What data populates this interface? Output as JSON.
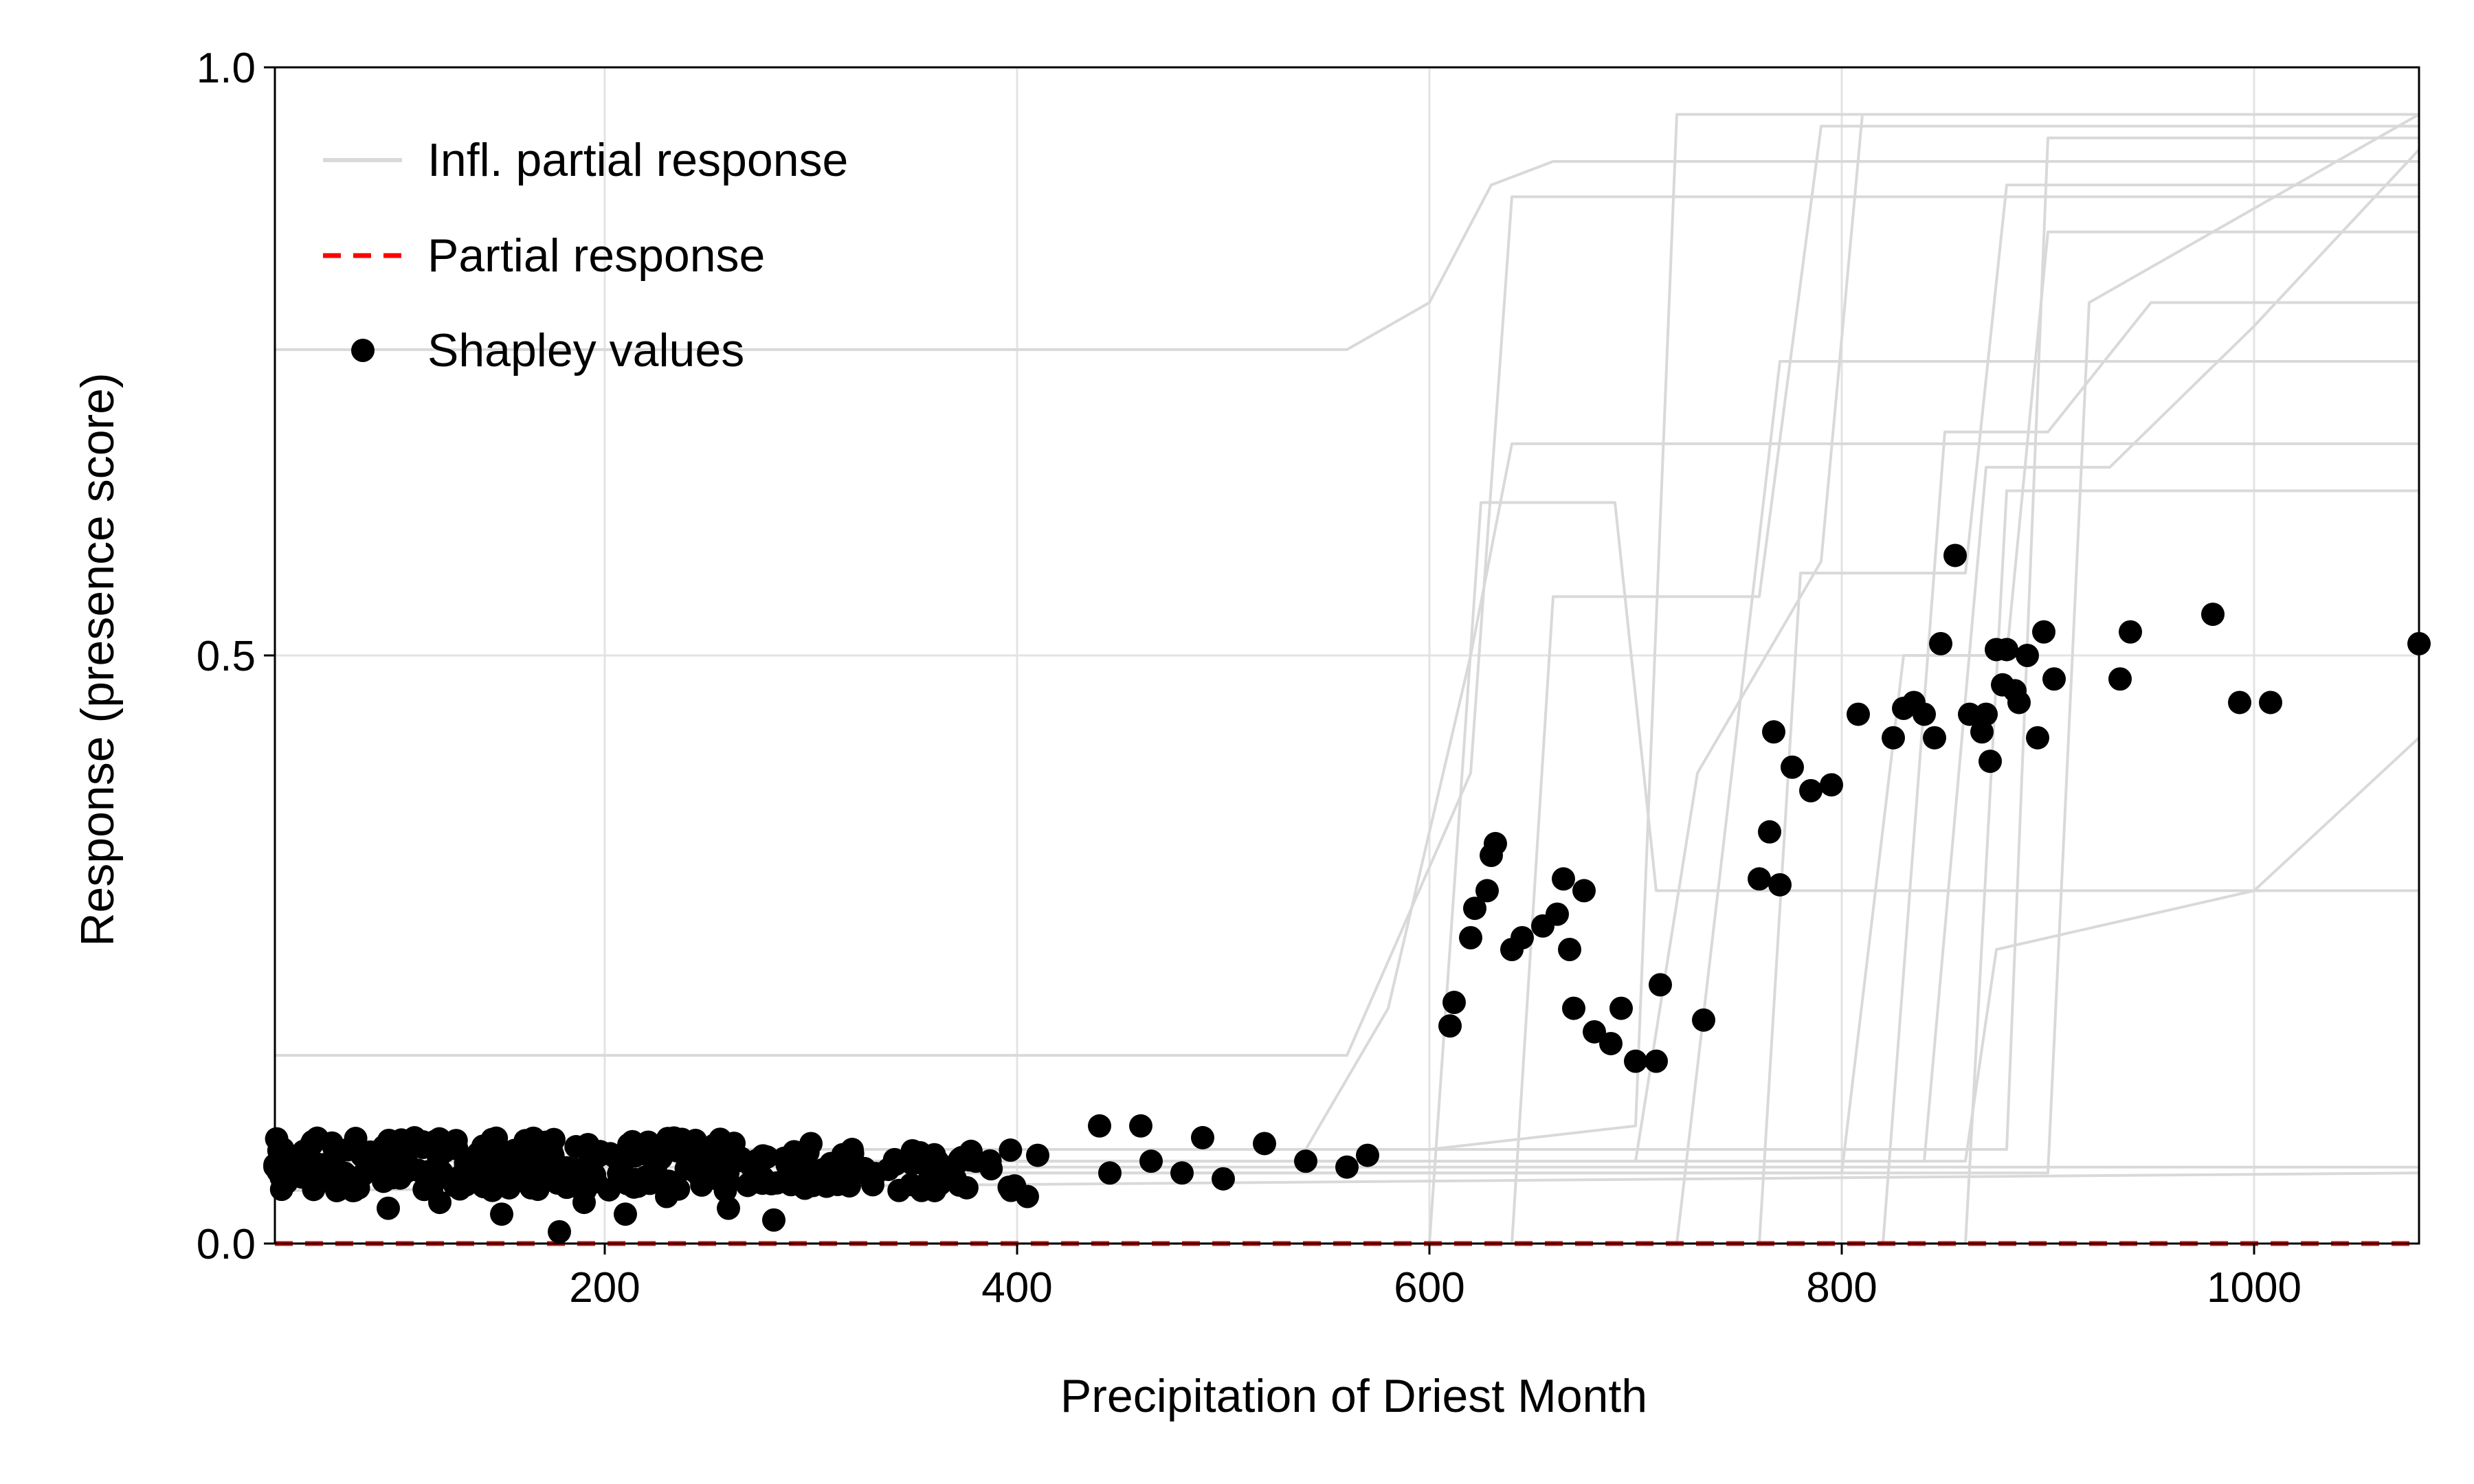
{
  "chart_data": {
    "type": "scatter",
    "title": "",
    "xlabel": "Precipitation of Driest Month",
    "ylabel": "Response (presence score)",
    "xlim": [
      40,
      1080
    ],
    "ylim": [
      0.0,
      1.0
    ],
    "xticks": [
      200,
      400,
      600,
      800,
      1000
    ],
    "yticks": [
      0.0,
      0.5,
      1.0
    ],
    "xtick_labels": [
      "200",
      "400",
      "600",
      "800",
      "1000"
    ],
    "ytick_labels": [
      "0.0",
      "0.5",
      "1.0"
    ],
    "grid": true,
    "legend_position": "top-left",
    "legend": [
      "Infl. partial response",
      "Partial response",
      "Shapley values"
    ],
    "colors": {
      "influence_lines": "#d9d9d9",
      "partial_response": "#ff0000",
      "shapley_points": "#000000"
    },
    "partial_response": {
      "name": "Partial response",
      "x": [
        40,
        1080
      ],
      "y": [
        0.0,
        0.0
      ]
    },
    "influence_lines": [
      {
        "x": [
          40,
          560,
          600,
          630,
          660,
          1080
        ],
        "y": [
          0.76,
          0.76,
          0.8,
          0.9,
          0.92,
          0.92
        ]
      },
      {
        "x": [
          40,
          560,
          620,
          640,
          655,
          1080
        ],
        "y": [
          0.16,
          0.16,
          0.4,
          0.89,
          0.89,
          0.89
        ]
      },
      {
        "x": [
          40,
          600,
          625,
          690,
          710,
          1080
        ],
        "y": [
          0.0,
          0.0,
          0.63,
          0.63,
          0.3,
          0.3
        ]
      },
      {
        "x": [
          40,
          560,
          600,
          700,
          720,
          760,
          1080
        ],
        "y": [
          0.08,
          0.08,
          0.08,
          0.1,
          0.96,
          0.96,
          0.96
        ]
      },
      {
        "x": [
          40,
          640,
          660,
          760,
          790,
          1080
        ],
        "y": [
          0.0,
          0.0,
          0.55,
          0.55,
          0.95,
          0.95
        ]
      },
      {
        "x": [
          40,
          700,
          730,
          790,
          810,
          1080
        ],
        "y": [
          0.07,
          0.07,
          0.4,
          0.58,
          0.96,
          0.96
        ]
      },
      {
        "x": [
          40,
          760,
          780,
          860,
          880,
          1080
        ],
        "y": [
          0.0,
          0.0,
          0.57,
          0.57,
          0.9,
          0.9
        ]
      },
      {
        "x": [
          40,
          800,
          830,
          880,
          900,
          1080
        ],
        "y": [
          0.06,
          0.06,
          0.5,
          0.5,
          0.86,
          0.86
        ]
      },
      {
        "x": [
          40,
          820,
          850,
          900,
          950,
          1080
        ],
        "y": [
          0.0,
          0.0,
          0.69,
          0.69,
          0.8,
          0.8
        ]
      },
      {
        "x": [
          40,
          840,
          870,
          930,
          1000,
          1080
        ],
        "y": [
          0.07,
          0.07,
          0.66,
          0.66,
          0.78,
          0.93
        ]
      },
      {
        "x": [
          40,
          860,
          880,
          940,
          1080
        ],
        "y": [
          0.0,
          0.0,
          0.64,
          0.64,
          0.64
        ]
      },
      {
        "x": [
          40,
          880,
          900,
          980,
          1080
        ],
        "y": [
          0.08,
          0.08,
          0.94,
          0.94,
          0.94
        ]
      },
      {
        "x": [
          40,
          540,
          580,
          620,
          640,
          1080
        ],
        "y": [
          0.08,
          0.08,
          0.2,
          0.5,
          0.68,
          0.68
        ]
      },
      {
        "x": [
          40,
          720,
          740,
          770,
          800,
          1080
        ],
        "y": [
          0.0,
          0.0,
          0.3,
          0.75,
          0.75,
          0.75
        ]
      },
      {
        "x": [
          40,
          860,
          875,
          1000,
          1080
        ],
        "y": [
          0.07,
          0.07,
          0.25,
          0.3,
          0.43
        ]
      },
      {
        "x": [
          40,
          900,
          920,
          1080
        ],
        "y": [
          0.06,
          0.06,
          0.8,
          0.96
        ]
      },
      {
        "x": [
          40,
          1080
        ],
        "y": [
          0.065,
          0.065
        ]
      },
      {
        "x": [
          40,
          1080
        ],
        "y": [
          0.045,
          0.06
        ]
      }
    ],
    "shapley_points": {
      "name": "Shapley values",
      "x": [
        178,
        282,
        210,
        150,
        260,
        95,
        120,
        190,
        230,
        70,
        300,
        320,
        350,
        380,
        410,
        440,
        460,
        490,
        520,
        540,
        570,
        445,
        465,
        500,
        330,
        360,
        405,
        480,
        560,
        610,
        612,
        620,
        622,
        628,
        630,
        632,
        640,
        645,
        655,
        662,
        665,
        668,
        670,
        675,
        680,
        688,
        693,
        700,
        710,
        712,
        733,
        760,
        765,
        767,
        770,
        776,
        785,
        795,
        808,
        825,
        830,
        835,
        840,
        845,
        848,
        855,
        862,
        868,
        870,
        872,
        875,
        878,
        880,
        884,
        886,
        890,
        895,
        898,
        903,
        935,
        940,
        980,
        993,
        1008,
        1080
      ],
      "y": [
        0.01,
        0.02,
        0.025,
        0.025,
        0.03,
        0.03,
        0.035,
        0.035,
        0.04,
        0.045,
        0.085,
        0.08,
        0.075,
        0.07,
        0.075,
        0.1,
        0.1,
        0.09,
        0.085,
        0.07,
        0.075,
        0.06,
        0.07,
        0.055,
        0.05,
        0.045,
        0.04,
        0.06,
        0.065,
        0.185,
        0.205,
        0.26,
        0.285,
        0.3,
        0.33,
        0.34,
        0.25,
        0.26,
        0.27,
        0.28,
        0.31,
        0.25,
        0.2,
        0.3,
        0.18,
        0.17,
        0.2,
        0.155,
        0.155,
        0.22,
        0.19,
        0.31,
        0.35,
        0.435,
        0.305,
        0.405,
        0.385,
        0.39,
        0.45,
        0.43,
        0.455,
        0.46,
        0.45,
        0.43,
        0.51,
        0.585,
        0.45,
        0.435,
        0.45,
        0.41,
        0.505,
        0.475,
        0.505,
        0.47,
        0.46,
        0.5,
        0.43,
        0.52,
        0.48,
        0.48,
        0.52,
        0.535,
        0.46,
        0.46,
        0.51
      ]
    }
  }
}
